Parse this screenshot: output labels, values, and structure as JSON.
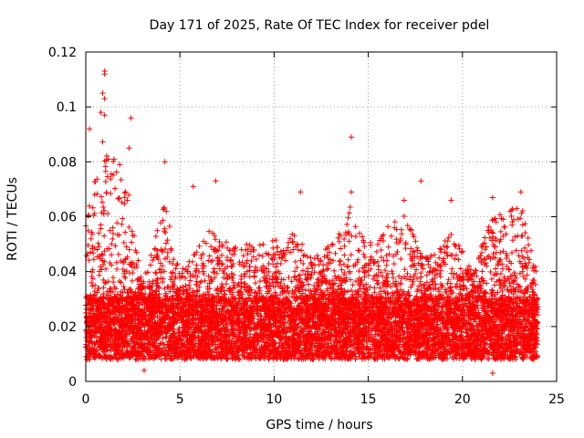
{
  "chart_data": {
    "type": "scatter",
    "title": "Day 171 of 2025, Rate Of TEC Index for receiver pdel",
    "xlabel": "GPS time / hours",
    "ylabel": "ROTI / TECUs",
    "xlim": [
      0,
      25
    ],
    "ylim": [
      0,
      0.12
    ],
    "xticks": [
      0,
      5,
      10,
      15,
      20,
      25
    ],
    "yticks": [
      0,
      0.02,
      0.04,
      0.06,
      0.08,
      0.1,
      0.12
    ],
    "xtick_labels": [
      "0",
      "5",
      "10",
      "15",
      "20",
      "25"
    ],
    "ytick_labels": [
      "0",
      "0.02",
      "0.04",
      "0.06",
      "0.08",
      "0.1",
      "0.12"
    ],
    "grid": true,
    "marker": "+",
    "marker_color": "#ff0000",
    "series": [
      {
        "name": "ROTI",
        "x_range": [
          0,
          24
        ],
        "baseline_band": [
          0.008,
          0.03
        ],
        "notable_points": [
          {
            "x": 1.0,
            "y": 0.112
          },
          {
            "x": 1.0,
            "y": 0.113
          },
          {
            "x": 0.9,
            "y": 0.105
          },
          {
            "x": 1.0,
            "y": 0.103
          },
          {
            "x": 0.8,
            "y": 0.098
          },
          {
            "x": 1.0,
            "y": 0.097
          },
          {
            "x": 2.4,
            "y": 0.096
          },
          {
            "x": 0.2,
            "y": 0.092
          },
          {
            "x": 2.3,
            "y": 0.085
          },
          {
            "x": 4.2,
            "y": 0.08
          },
          {
            "x": 1.8,
            "y": 0.079
          },
          {
            "x": 1.5,
            "y": 0.081
          },
          {
            "x": 14.1,
            "y": 0.089
          },
          {
            "x": 17.8,
            "y": 0.073
          },
          {
            "x": 6.9,
            "y": 0.073
          },
          {
            "x": 11.4,
            "y": 0.069
          },
          {
            "x": 14.1,
            "y": 0.069
          },
          {
            "x": 16.9,
            "y": 0.066
          },
          {
            "x": 23.1,
            "y": 0.069
          },
          {
            "x": 5.7,
            "y": 0.071
          },
          {
            "x": 21.6,
            "y": 0.067
          },
          {
            "x": 19.4,
            "y": 0.066
          },
          {
            "x": 21.6,
            "y": 0.003
          },
          {
            "x": 3.1,
            "y": 0.004
          }
        ]
      }
    ]
  }
}
